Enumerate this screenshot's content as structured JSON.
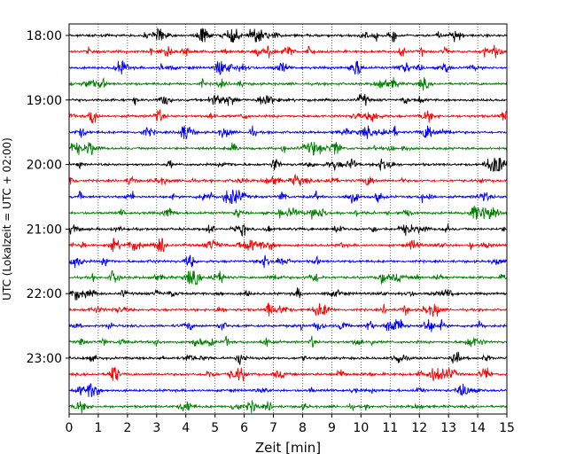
{
  "chart_data": {
    "type": "line",
    "title": "",
    "xlabel": "Zeit  [min]",
    "ylabel": "UTC (Lokalzeit = UTC + 02:00)",
    "xlim": [
      0,
      15
    ],
    "x_ticks": [
      "0",
      "1",
      "2",
      "3",
      "4",
      "5",
      "6",
      "7",
      "8",
      "9",
      "10",
      "11",
      "12",
      "13",
      "14",
      "15"
    ],
    "y_tick_labels": [
      "18:00",
      "19:00",
      "20:00",
      "21:00",
      "22:00",
      "23:00"
    ],
    "trace_interval_min": 15,
    "trace_start": "18:00",
    "trace_count": 24,
    "grid_x": true,
    "trace_colors": [
      "#000000",
      "#ff0000",
      "#0000ff",
      "#008000"
    ]
  }
}
